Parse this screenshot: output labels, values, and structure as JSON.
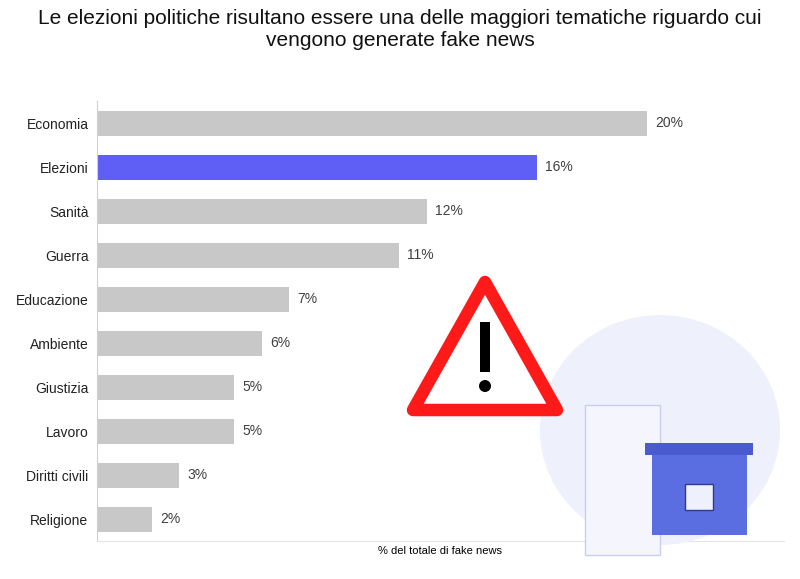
{
  "chart_data": {
    "type": "bar",
    "orientation": "horizontal",
    "title": "Le elezioni politiche risultano essere una delle maggiori tematiche riguardo cui vengono generate fake news",
    "x_label": "% del totale di fake news",
    "categories": [
      "Economia",
      "Elezioni",
      "Sanità",
      "Guerra",
      "Educazione",
      "Ambiente",
      "Giustizia",
      "Lavoro",
      "Diritti civili",
      "Religione"
    ],
    "values": [
      20,
      16,
      12,
      11,
      7,
      6,
      5,
      5,
      3,
      2
    ],
    "value_labels": [
      "20%",
      "16%",
      "12%",
      "11%",
      "7%",
      "6%",
      "5%",
      "5%",
      "3%",
      "2%"
    ],
    "colors": [
      "#c8c8c8",
      "#5f5ff5",
      "#c8c8c8",
      "#c8c8c8",
      "#c8c8c8",
      "#c8c8c8",
      "#c8c8c8",
      "#c8c8c8",
      "#c8c8c8",
      "#c8c8c8"
    ],
    "xlim": [
      0,
      25
    ],
    "xticks": [],
    "tick_labels": "y",
    "data_labels": true,
    "grid": false
  }
}
